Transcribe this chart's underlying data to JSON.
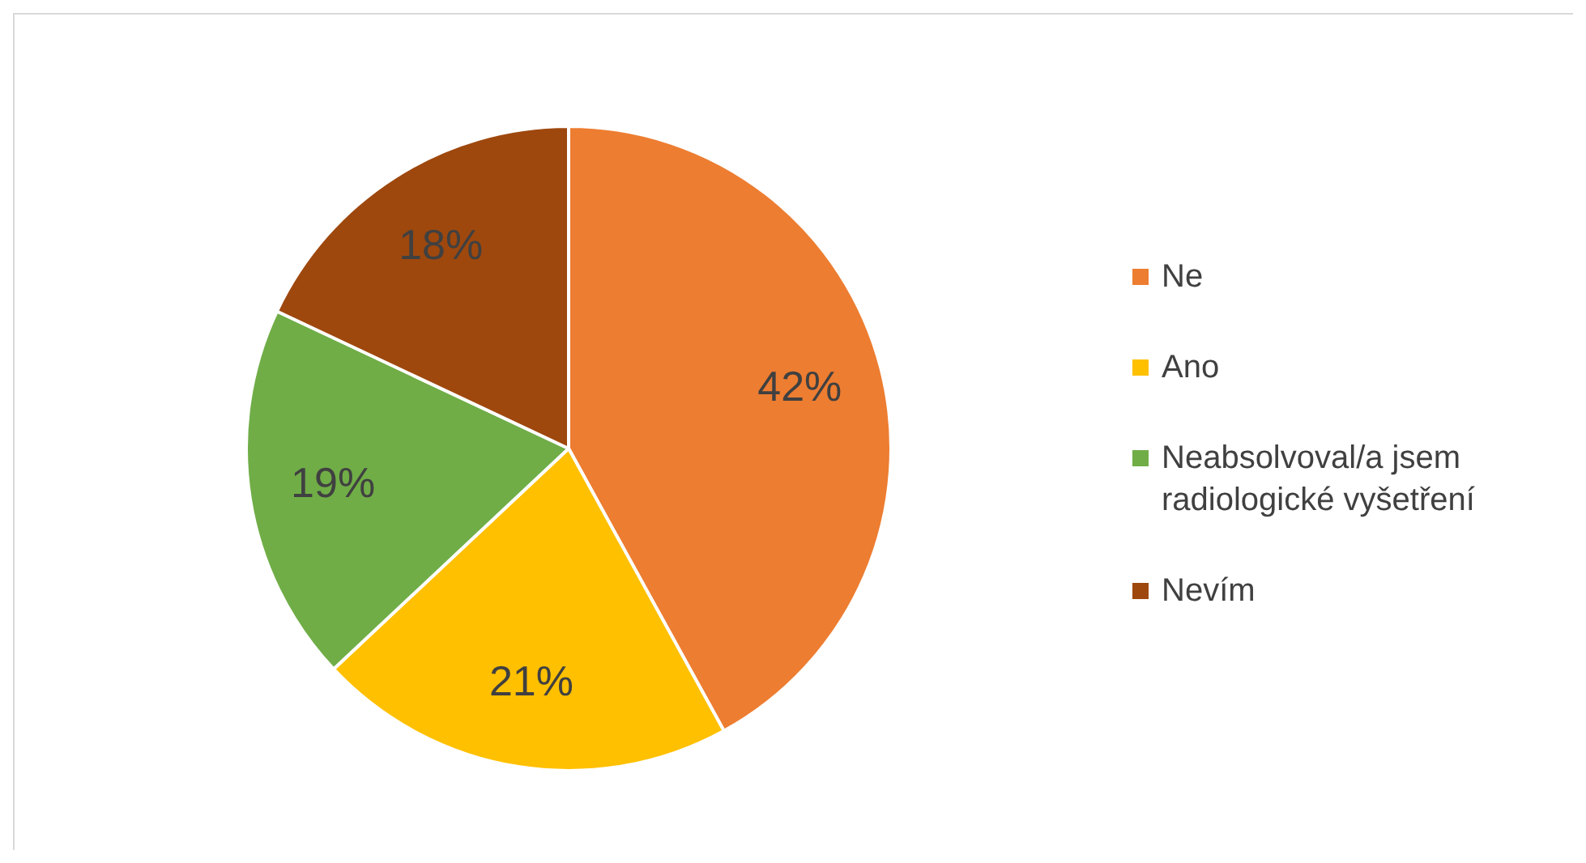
{
  "chart_data": {
    "type": "pie",
    "categories": [
      "Ne",
      "Ano",
      "Neabsolvoval/a jsem radiologické vyšetření",
      "Nevím"
    ],
    "values": [
      42,
      21,
      19,
      18
    ],
    "colors": [
      "#ed7d31",
      "#ffc000",
      "#70ad47",
      "#9e480e"
    ],
    "value_labels": [
      "42%",
      "21%",
      "19%",
      "18%"
    ],
    "legend": "right"
  }
}
